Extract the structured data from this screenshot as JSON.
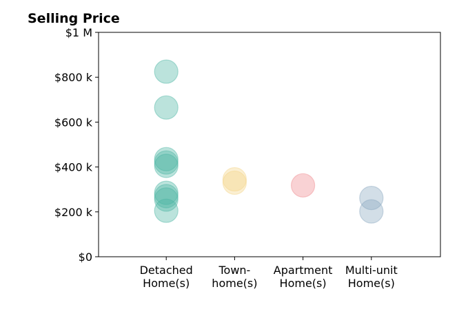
{
  "chart_data": {
    "type": "scatter",
    "title": "Selling Price",
    "xlabel": "",
    "ylabel": "",
    "categories": [
      [
        "Detached",
        "Home(s)"
      ],
      [
        "Town-",
        "home(s)"
      ],
      [
        "Apartment",
        "Home(s)"
      ],
      [
        "Multi-unit",
        "Home(s)"
      ]
    ],
    "ylim": [
      0,
      1000000
    ],
    "y_ticks": [
      0,
      200000,
      400000,
      600000,
      800000,
      1000000
    ],
    "y_tick_labels": [
      "$0",
      "$200 k",
      "$400 k",
      "$600 k",
      "$800 k",
      "$1 M"
    ],
    "grid": false,
    "series": [
      {
        "category": 0,
        "color": "#4db6a4",
        "values": [
          825000,
          665000,
          435000,
          420000,
          405000,
          285000,
          270000,
          255000,
          205000
        ]
      },
      {
        "category": 1,
        "color": "#f5d58a",
        "values": [
          345000,
          330000
        ]
      },
      {
        "category": 2,
        "color": "#f08a8e",
        "values": [
          318000
        ]
      },
      {
        "category": 3,
        "color": "#8aa7bf",
        "values": [
          262000,
          202000
        ]
      }
    ]
  }
}
